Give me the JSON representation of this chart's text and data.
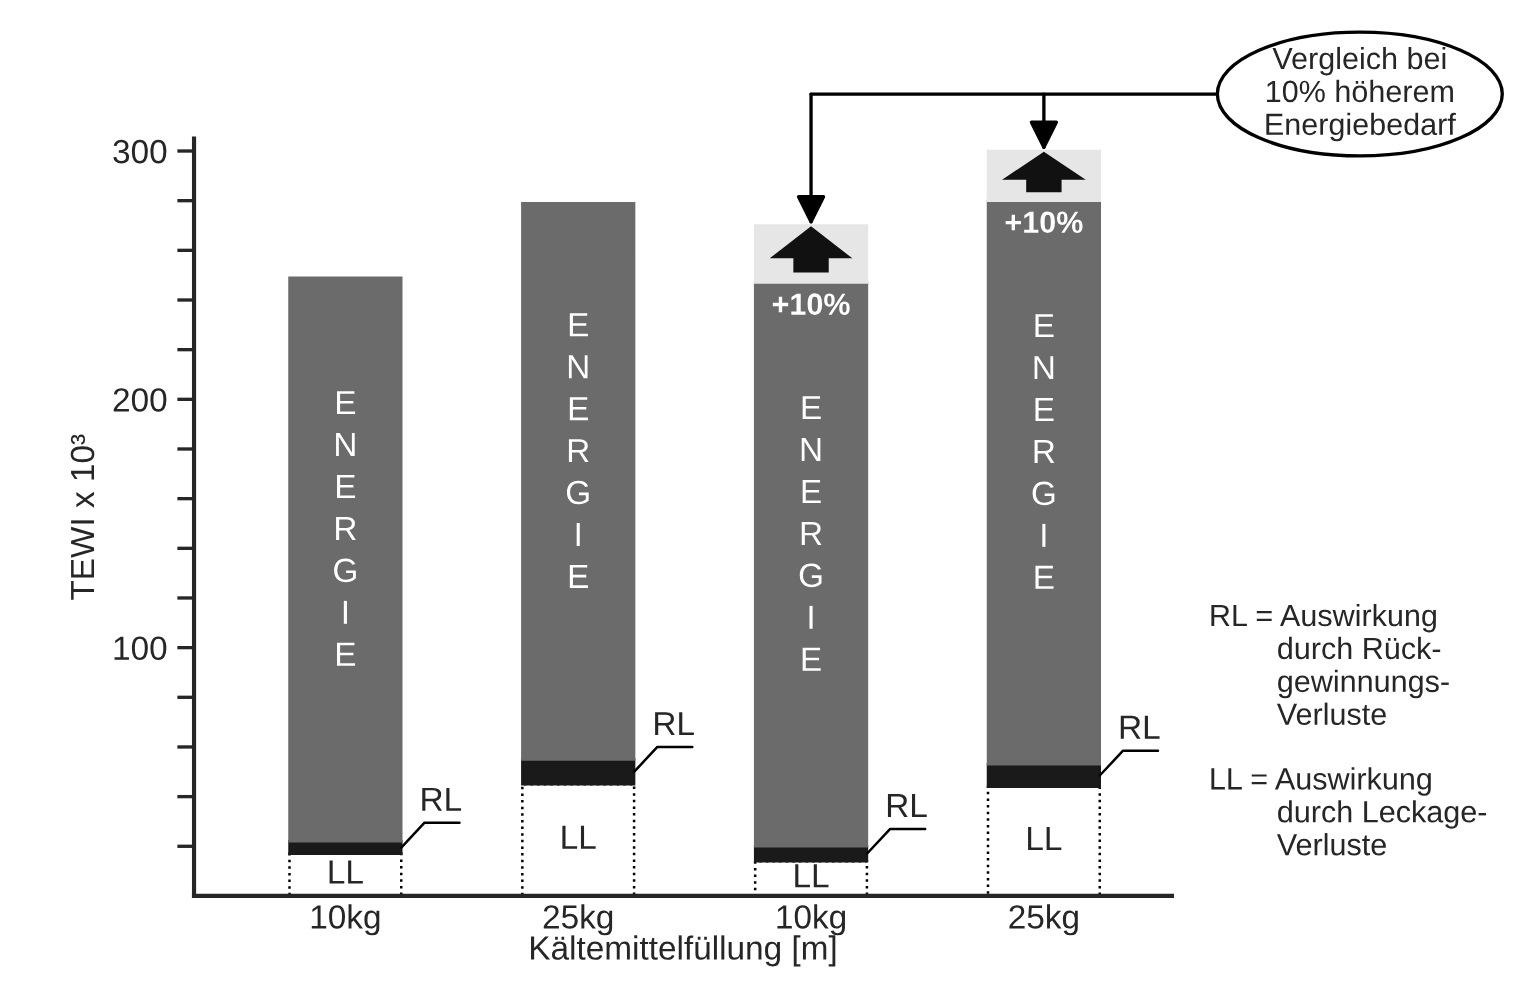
{
  "chart_data": {
    "type": "bar",
    "stacked": true,
    "xlabel": "Kältemittelfüllung [m]",
    "ylabel": "TEWI x 10³",
    "categories": [
      "10kg",
      "25kg",
      "10kg",
      "25kg"
    ],
    "series": [
      {
        "name": "LL",
        "color": "#ffffff",
        "values": [
          17,
          45,
          14,
          44
        ]
      },
      {
        "name": "RL",
        "color": "#1a1a1a",
        "values": [
          5,
          10,
          6,
          9
        ]
      },
      {
        "name": "ENERGIE",
        "color": "#6b6b6b",
        "values": [
          227,
          224,
          227,
          227
        ]
      },
      {
        "color": "#e6e6e6",
        "values": [
          null,
          null,
          23,
          20
        ]
      }
    ],
    "ylim": [
      0,
      305
    ],
    "yticks": [
      {
        "value": 20,
        "label": null
      },
      {
        "value": 40,
        "label": null
      },
      {
        "value": 60,
        "label": null
      },
      {
        "value": 80,
        "label": null
      },
      100,
      {
        "value": 120,
        "label": null
      },
      {
        "value": 140,
        "label": null
      },
      {
        "value": 160,
        "label": null
      },
      {
        "value": 180,
        "label": null
      },
      200,
      {
        "value": 220,
        "label": null
      },
      {
        "value": 240,
        "label": null
      },
      {
        "value": 260,
        "label": null
      },
      {
        "value": 280,
        "label": null
      },
      300
    ],
    "grid": false,
    "annotations": [
      "Vergleich bei\n10% höherem\nEnergiebedarf",
      "RL = Auswirkung\n        durch Rück-\n        gewinnungs-\n        Verluste",
      "LL = Auswirkung\n        durch Leckage-\n        Verluste",
      "+10%",
      "+10%"
    ]
  }
}
